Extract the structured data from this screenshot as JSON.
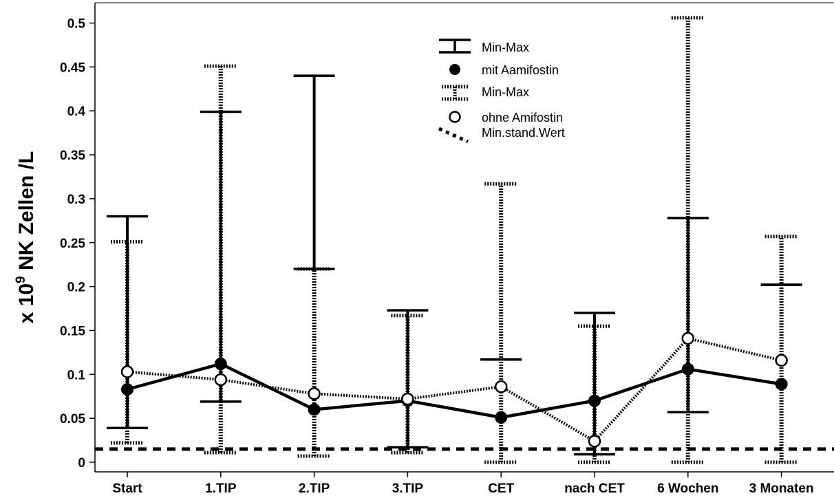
{
  "chart_data": {
    "type": "line",
    "title": "",
    "categories": [
      "Start",
      "1.TIP",
      "2.TIP",
      "3.TIP",
      "CET",
      "nach CET",
      "6 Wochen",
      "3 Monaten"
    ],
    "ylabel_prefix": "x 10",
    "ylabel_exponent": "9",
    "ylabel_suffix": " NK Zellen /L",
    "ylim": [
      0,
      0.5
    ],
    "yticks": [
      "0",
      "0.05",
      "0.1",
      "0.15",
      "0.2",
      "0.25",
      "0.3",
      "0.35",
      "0.4",
      "0.45",
      "0.5"
    ],
    "grid": false,
    "legend_position": "top-center",
    "series": [
      {
        "name": "mit Aamifostin",
        "range_name": "Min-Max",
        "style": "solid",
        "marker": "filled",
        "values": [
          0.083,
          0.112,
          0.06,
          0.07,
          0.051,
          0.07,
          0.106,
          0.089
        ],
        "min": [
          0.039,
          0.069,
          0.22,
          0.017,
          0.117,
          0.009,
          0.057,
          0.202
        ],
        "max": [
          0.28,
          0.399,
          0.44,
          0.173,
          0.117,
          0.17,
          0.278,
          0.202
        ]
      },
      {
        "name": "ohne Amifostin",
        "range_name": "Min-Max",
        "style": "dotted",
        "marker": "open",
        "values": [
          0.103,
          0.094,
          0.078,
          0.072,
          0.086,
          0.024,
          0.141,
          0.116
        ],
        "min": [
          0.022,
          0.011,
          0.007,
          0.011,
          0.0,
          0.0,
          0.0,
          0.0
        ],
        "max": [
          0.251,
          0.451,
          0.22,
          0.167,
          0.317,
          0.155,
          0.506,
          0.257
        ]
      }
    ],
    "reference_line": {
      "name": "Min.stand.Wert",
      "value": 0.015
    }
  }
}
